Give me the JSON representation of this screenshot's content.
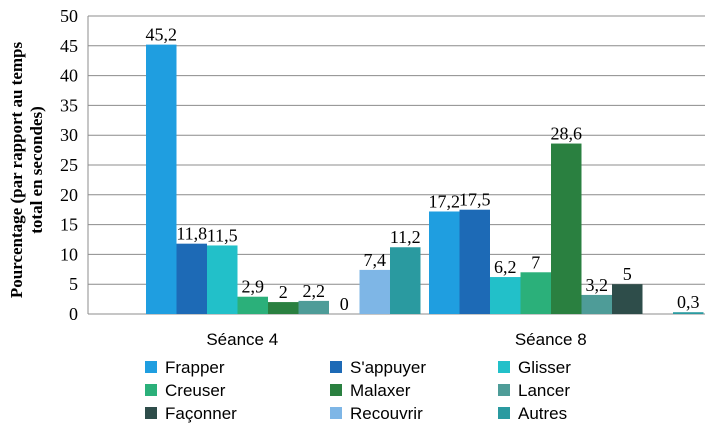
{
  "chart_data": {
    "type": "bar",
    "categories": [
      "Séance 4",
      "Séance 8"
    ],
    "series": [
      {
        "name": "Frapper",
        "color": "#1f9ee0",
        "values": [
          45.2,
          17.2
        ]
      },
      {
        "name": "S'appuyer",
        "color": "#1d6ab6",
        "values": [
          11.8,
          17.5
        ]
      },
      {
        "name": "Glisser",
        "color": "#22c0c9",
        "values": [
          11.5,
          6.2
        ]
      },
      {
        "name": "Creuser",
        "color": "#2bb07a",
        "values": [
          2.9,
          7
        ]
      },
      {
        "name": "Malaxer",
        "color": "#2a8040",
        "values": [
          2,
          28.6
        ]
      },
      {
        "name": "Lancer",
        "color": "#4e9c98",
        "values": [
          2.2,
          3.2
        ]
      },
      {
        "name": "Façonner",
        "color": "#2e4d4a",
        "values": [
          0,
          5
        ]
      },
      {
        "name": "Recouvrir",
        "color": "#7eb6e6",
        "values": [
          7.4,
          0
        ]
      },
      {
        "name": "Autres",
        "color": "#2a9aa0",
        "values": [
          11.2,
          0.3
        ]
      }
    ],
    "data_labels": [
      [
        "45,2",
        "17,2"
      ],
      [
        "11,8",
        "17,5"
      ],
      [
        "11,5",
        "6,2"
      ],
      [
        "2,9",
        "7"
      ],
      [
        "2",
        "28,6"
      ],
      [
        "2,2",
        "3,2"
      ],
      [
        "0",
        "5"
      ],
      [
        "7,4",
        ""
      ],
      [
        "11,2",
        "0,3"
      ]
    ],
    "ylabel": "Pourcentage (par rapport au temps total en secondes)",
    "ylabel_lines": [
      "Pourcentage (par rapport au temps",
      "total en secondes)"
    ],
    "ylim": [
      0,
      50
    ],
    "yticks": [
      0,
      5,
      10,
      15,
      20,
      25,
      30,
      35,
      40,
      45,
      50
    ],
    "grid": true,
    "legend_position": "bottom"
  }
}
